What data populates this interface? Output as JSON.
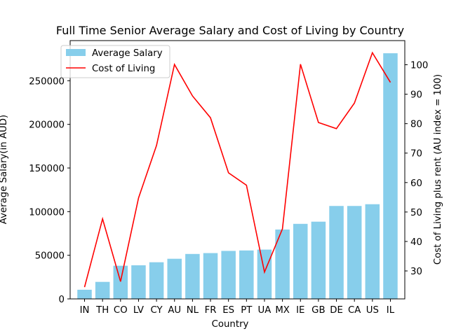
{
  "chart_data": {
    "type": "bar+line",
    "title": "Full Time Senior Average Salary and Cost of Living by Country",
    "xlabel": "Country",
    "ylabel_left": "Average Salary(in AUD)",
    "ylabel_right": "Cost of Living plus rent (AU index = 100)",
    "categories": [
      "IN",
      "TH",
      "CO",
      "LV",
      "CY",
      "AU",
      "NL",
      "FR",
      "ES",
      "PT",
      "UA",
      "MX",
      "IE",
      "GB",
      "DE",
      "CA",
      "US",
      "IL"
    ],
    "series": [
      {
        "name": "Average Salary",
        "type": "bar",
        "axis": "left",
        "color": "#87ceeb",
        "values": [
          10500,
          19500,
          38000,
          38500,
          42000,
          46000,
          51500,
          52500,
          55000,
          55500,
          56500,
          79500,
          86000,
          88500,
          106500,
          106500,
          108500,
          281500
        ]
      },
      {
        "name": "Cost of Living",
        "type": "line",
        "axis": "right",
        "color": "#ff0000",
        "values": [
          24.5,
          47.7,
          26.4,
          54.8,
          72.6,
          100.1,
          89.4,
          82.0,
          63.3,
          59.1,
          29.6,
          44.3,
          100.2,
          80.4,
          78.3,
          87.0,
          104.1,
          94.0
        ]
      }
    ],
    "ylim_left": [
      0,
      296000
    ],
    "yticks_left": [
      0,
      50000,
      100000,
      150000,
      200000,
      250000
    ],
    "ylim_right": [
      20.5,
      108.2
    ],
    "yticks_right": [
      30,
      40,
      50,
      60,
      70,
      80,
      90,
      100
    ],
    "legend_position": "top-left",
    "grid": false
  }
}
